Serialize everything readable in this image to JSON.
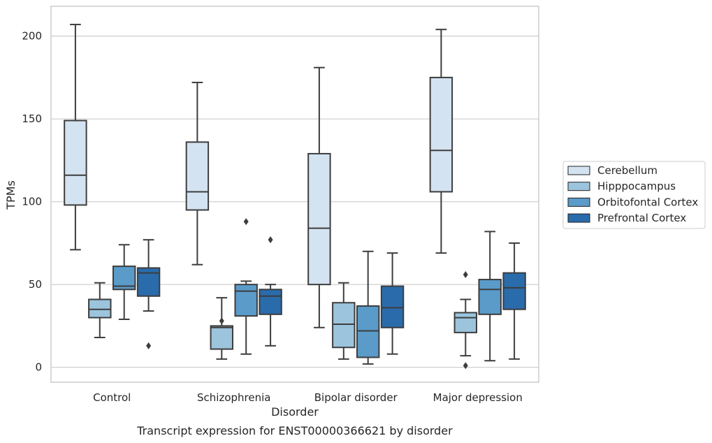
{
  "chart_data": {
    "type": "box",
    "xlabel": "Disorder",
    "ylabel": "TPMs",
    "caption": "Transcript expression for ENST00000366621 by disorder",
    "ylim": [
      -9,
      218
    ],
    "yticks": [
      0,
      50,
      100,
      150,
      200
    ],
    "grid": "horizontal",
    "legend_position": "right",
    "categories": [
      "Control",
      "Schizophrenia",
      "Bipolar disorder",
      "Major depression"
    ],
    "series": [
      {
        "name": "Cerebellum",
        "color": "#d4e3f1",
        "boxes": [
          {
            "whisker_low": 71,
            "q1": 98,
            "median": 116,
            "q3": 149,
            "whisker_high": 207,
            "outliers": []
          },
          {
            "whisker_low": 62,
            "q1": 95,
            "median": 106,
            "q3": 136,
            "whisker_high": 172,
            "outliers": []
          },
          {
            "whisker_low": 24,
            "q1": 50,
            "median": 84,
            "q3": 129,
            "whisker_high": 181,
            "outliers": []
          },
          {
            "whisker_low": 69,
            "q1": 106,
            "median": 131,
            "q3": 175,
            "whisker_high": 204,
            "outliers": []
          }
        ]
      },
      {
        "name": "Hipppocampus",
        "color": "#9cc4dd",
        "boxes": [
          {
            "whisker_low": 18,
            "q1": 30,
            "median": 35,
            "q3": 41,
            "whisker_high": 51,
            "outliers": []
          },
          {
            "whisker_low": 5,
            "q1": 11,
            "median": 24,
            "q3": 25,
            "whisker_high": 42,
            "outliers": [
              28
            ]
          },
          {
            "whisker_low": 5,
            "q1": 12,
            "median": 26,
            "q3": 39,
            "whisker_high": 51,
            "outliers": []
          },
          {
            "whisker_low": 7,
            "q1": 21,
            "median": 30,
            "q3": 33,
            "whisker_high": 41,
            "outliers": [
              1,
              56
            ]
          }
        ]
      },
      {
        "name": "Orbitofontal Cortex",
        "color": "#5a9bc9",
        "boxes": [
          {
            "whisker_low": 29,
            "q1": 47,
            "median": 49,
            "q3": 61,
            "whisker_high": 74,
            "outliers": []
          },
          {
            "whisker_low": 8,
            "q1": 31,
            "median": 46,
            "q3": 50,
            "whisker_high": 52,
            "outliers": [
              88
            ]
          },
          {
            "whisker_low": 2,
            "q1": 6,
            "median": 22,
            "q3": 37,
            "whisker_high": 70,
            "outliers": []
          },
          {
            "whisker_low": 4,
            "q1": 32,
            "median": 47,
            "q3": 53,
            "whisker_high": 82,
            "outliers": []
          }
        ]
      },
      {
        "name": "Prefrontal Cortex",
        "color": "#2a6bab",
        "boxes": [
          {
            "whisker_low": 34,
            "q1": 43,
            "median": 57,
            "q3": 60,
            "whisker_high": 77,
            "outliers": [
              13
            ]
          },
          {
            "whisker_low": 13,
            "q1": 32,
            "median": 43,
            "q3": 47,
            "whisker_high": 50,
            "outliers": [
              77
            ]
          },
          {
            "whisker_low": 8,
            "q1": 24,
            "median": 36,
            "q3": 49,
            "whisker_high": 69,
            "outliers": []
          },
          {
            "whisker_low": 5,
            "q1": 35,
            "median": 48,
            "q3": 57,
            "whisker_high": 75,
            "outliers": []
          }
        ]
      }
    ]
  }
}
